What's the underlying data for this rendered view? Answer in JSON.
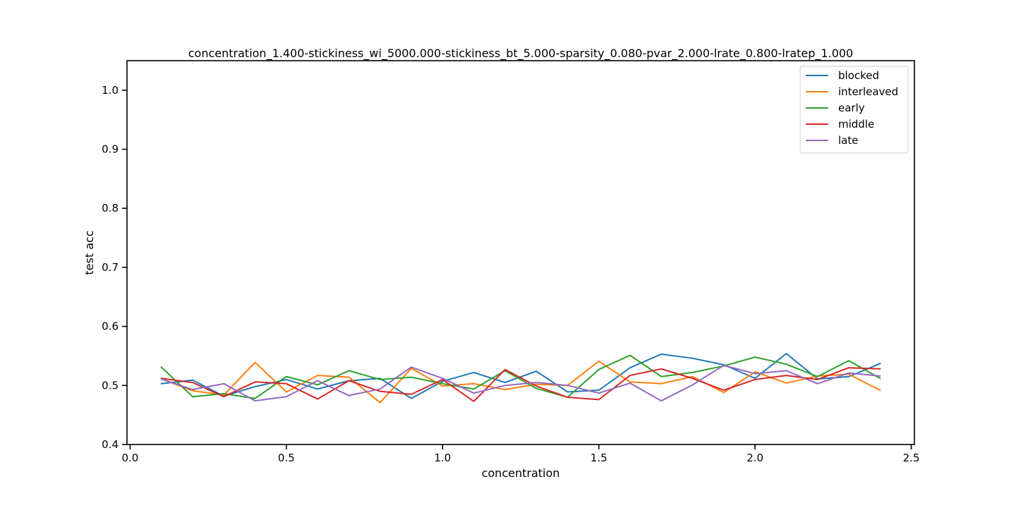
{
  "chart_data": {
    "type": "line",
    "title": "concentration_1.400-stickiness_wi_5000.000-stickiness_bt_5.000-sparsity_0.080-pvar_2.000-lrate_0.800-lratep_1.000",
    "xlabel": "concentration",
    "ylabel": "test acc",
    "xlim": [
      -0.01,
      2.51
    ],
    "ylim": [
      0.4,
      1.05
    ],
    "xticks": [
      0.0,
      0.5,
      1.0,
      1.5,
      2.0,
      2.5
    ],
    "xtick_labels": [
      "0.0",
      "0.5",
      "1.0",
      "1.5",
      "2.0",
      "2.5"
    ],
    "yticks": [
      0.4,
      0.5,
      0.6,
      0.7,
      0.8,
      0.9,
      1.0
    ],
    "ytick_labels": [
      "0.4",
      "0.5",
      "0.6",
      "0.7",
      "0.8",
      "0.9",
      "1.0"
    ],
    "grid": false,
    "legend_position": "top-right",
    "x": [
      0.1,
      0.2,
      0.3,
      0.4,
      0.5,
      0.6,
      0.7,
      0.8,
      0.9,
      1.0,
      1.1,
      1.2,
      1.3,
      1.4,
      1.5,
      1.6,
      1.7,
      1.8,
      1.9,
      2.0,
      2.1,
      2.2,
      2.3,
      2.4
    ],
    "series": [
      {
        "name": "blocked",
        "color": "#1f77b4",
        "values": [
          0.503,
          0.509,
          0.482,
          0.498,
          0.51,
          0.494,
          0.508,
          0.512,
          0.478,
          0.507,
          0.522,
          0.505,
          0.524,
          0.489,
          0.492,
          0.53,
          0.553,
          0.546,
          0.535,
          0.512,
          0.554,
          0.511,
          0.515,
          0.537
        ]
      },
      {
        "name": "interleaved",
        "color": "#ff7f0e",
        "values": [
          0.511,
          0.491,
          0.484,
          0.539,
          0.489,
          0.517,
          0.514,
          0.471,
          0.529,
          0.499,
          0.503,
          0.493,
          0.502,
          0.5,
          0.541,
          0.506,
          0.503,
          0.515,
          0.488,
          0.523,
          0.504,
          0.516,
          0.519,
          0.492
        ]
      },
      {
        "name": "early",
        "color": "#2ca02c",
        "values": [
          0.531,
          0.481,
          0.486,
          0.478,
          0.515,
          0.501,
          0.525,
          0.51,
          0.514,
          0.503,
          0.494,
          0.525,
          0.495,
          0.48,
          0.527,
          0.551,
          0.515,
          0.522,
          0.533,
          0.548,
          0.536,
          0.515,
          0.542,
          0.512
        ]
      },
      {
        "name": "middle",
        "color": "#d62728",
        "values": [
          0.512,
          0.505,
          0.481,
          0.506,
          0.503,
          0.477,
          0.508,
          0.49,
          0.485,
          0.51,
          0.473,
          0.527,
          0.499,
          0.48,
          0.476,
          0.517,
          0.528,
          0.512,
          0.492,
          0.51,
          0.517,
          0.51,
          0.53,
          0.528
        ]
      },
      {
        "name": "late",
        "color": "#9467bd",
        "values": [
          0.511,
          0.493,
          0.503,
          0.474,
          0.481,
          0.508,
          0.483,
          0.494,
          0.531,
          0.512,
          0.487,
          0.5,
          0.505,
          0.5,
          0.487,
          0.504,
          0.474,
          0.501,
          0.534,
          0.52,
          0.525,
          0.503,
          0.521,
          0.516
        ]
      }
    ]
  }
}
